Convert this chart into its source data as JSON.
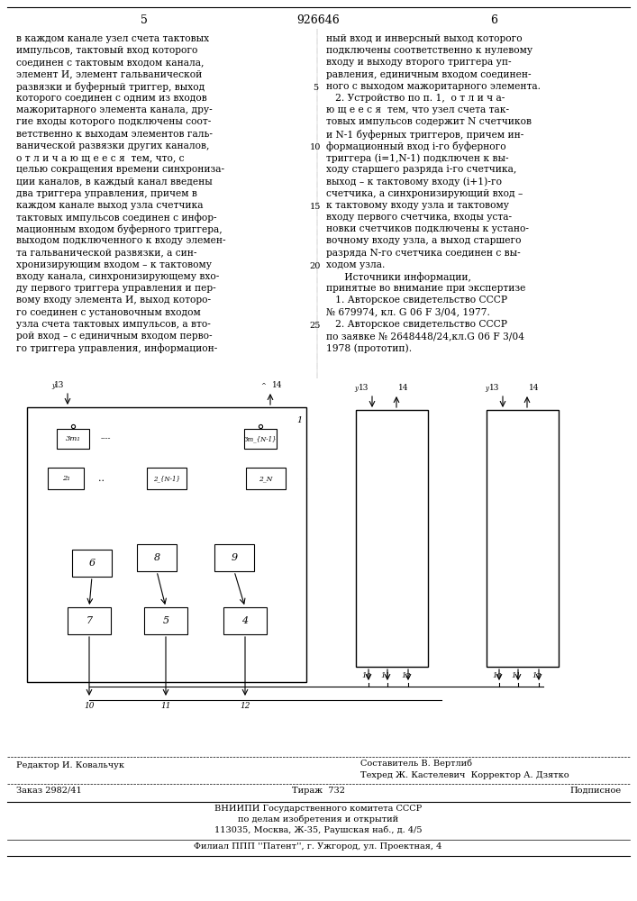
{
  "page_number_left": "5",
  "patent_number": "926646",
  "page_number_right": "6",
  "background_color": "#ffffff",
  "text_color": "#000000",
  "left_column_text": [
    "в каждом канале узел счета тактовых",
    "импульсов, тактовый вход которого",
    "соединен с тактовым входом канала,",
    "элемент И, элемент гальванической",
    "развязки и буферный триггер, выход",
    "которого соединен с одним из входов",
    "мажоритарного элемента канала, дру-",
    "гие входы которого подключены соот-",
    "ветственно к выходам элементов галь-",
    "ванической развязки других каналов,",
    "о т л и ч а ю щ е е с я  тем, что, с",
    "целью сокращения времени синхрониза-",
    "ции каналов, в каждый канал введены",
    "два триггера управления, причем в",
    "каждом канале выход узла счетчика",
    "тактовых импульсов соединен с инфор-",
    "мационным входом буферного триггера,",
    "выходом подключенного к входу элемен-",
    "та гальванической развязки, а син-",
    "хронизирующим входом – к тактовому",
    "входу канала, синхронизирующему вхо-",
    "ду первого триггера управления и пер-",
    "вому входу элемента И, выход которо-",
    "го соединен с установочным входом",
    "узла счета тактовых импульсов, а вто-",
    "рой вход – с единичным входом перво-",
    "го триггера управления, информацион-"
  ],
  "right_column_text": [
    "ный вход и инверсный выход которого",
    "подключены соответственно к нулевому",
    "входу и выходу второго триггера уп-",
    "равления, единичным входом соединен-",
    "ного с выходом мажоритарного элемента.",
    "   2. Устройство по п. 1,  о т л и ч а-",
    "ю щ е е с я  тем, что узел счета так-",
    "товых импульсов содержит N счетчиков",
    "и N-1 буферных триггеров, причем ин-",
    "формационный вход i-го буферного",
    "триггера (i=1,N-1) подключен к вы-",
    "ходу старшего разряда i-го счетчика,",
    "выход – к тактовому входу (i+1)-го",
    "счетчика, а синхронизирующий вход –",
    "к тактовому входу узла и тактовому",
    "входу первого счетчика, входы уста-",
    "новки счетчиков подключены к устано-",
    "вочному входу узла, а выход старшего",
    "разряда N-го счетчика соединен с вы-",
    "ходом узла.",
    "      Источники информации,",
    "принятые во внимание при экспертизе",
    "   1. Авторское свидетельство СССР",
    "№ 679974, кл. G 06 F 3/04, 1977.",
    "   2. Авторское свидетельство СССР",
    "по заявке № 2648448/24,кл.G 06 F 3/04",
    "1978 (прототип)."
  ],
  "line_numbers": [
    [
      4,
      "5"
    ],
    [
      9,
      "10"
    ],
    [
      14,
      "15"
    ],
    [
      19,
      "20"
    ],
    [
      24,
      "25"
    ]
  ],
  "footer_editor": "Редактор И. Ковальчук",
  "footer_composer": "Составитель В. Вертлиб",
  "footer_tech": "Техред Ж. Кастелевич  Корректор А. Дзятко",
  "footer_order": "Заказ 2982/41",
  "footer_tirazh": "Тираж  732",
  "footer_podp": "Подписное",
  "footer_org1": "ВНИИПИ Государственного комитета СССР",
  "footer_org2": "по делам изобретения и открытий",
  "footer_addr": "113035, Москва, Ж-35, Раушская наб., д. 4/5",
  "footer_filial": "Филиал ППП ''Патент'', г. Ужгород, ул. Проектная, 4"
}
